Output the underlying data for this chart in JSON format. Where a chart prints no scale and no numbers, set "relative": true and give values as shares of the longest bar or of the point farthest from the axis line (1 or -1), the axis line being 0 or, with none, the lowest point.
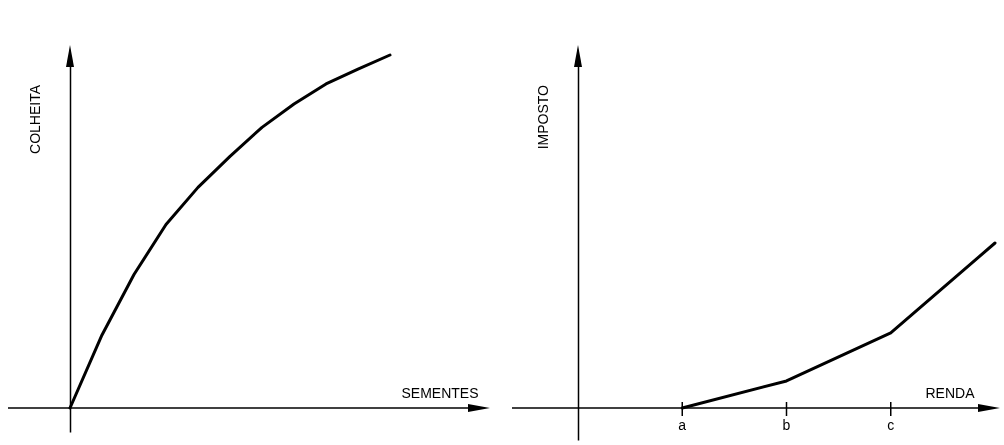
{
  "chart_data": [
    {
      "type": "line",
      "relative": true,
      "xlabel": "SEMENTES",
      "ylabel": "COLHEITA",
      "color": "#000000",
      "categories": [
        null,
        null,
        null,
        null,
        null,
        null,
        null,
        null,
        null,
        null,
        null
      ],
      "values": [
        0,
        0.207,
        0.378,
        0.52,
        0.625,
        0.713,
        0.795,
        0.861,
        0.918,
        0.96,
        1
      ]
    },
    {
      "type": "line",
      "relative": true,
      "xlabel": "RENDA",
      "ylabel": "IMPOSTO",
      "color": "#000000",
      "categories": [
        null,
        "a",
        "b",
        "c",
        null
      ],
      "values": [
        null,
        0,
        0.164,
        0.455,
        1
      ]
    }
  ]
}
